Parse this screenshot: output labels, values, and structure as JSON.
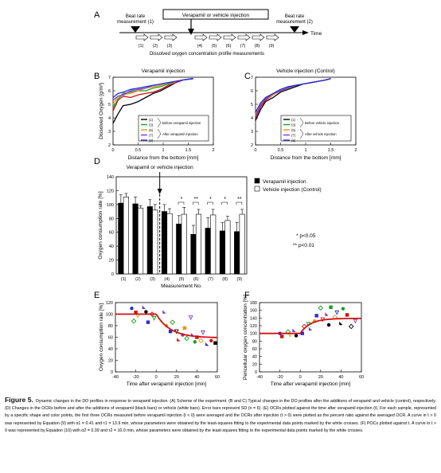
{
  "panel_labels": [
    "A",
    "B",
    "C",
    "D",
    "E",
    "F"
  ],
  "panelA": {
    "beat_rate_1": [
      "Beat rate",
      "measurement (1)"
    ],
    "injection_box": "Verapamil or vehicle injection",
    "beat_rate_2": [
      "Beat rate",
      "measurement (2)"
    ],
    "time_label": "Time",
    "steps": [
      "(1)",
      "(2)",
      "(3)",
      "(4)",
      "(5)",
      "(6)",
      "(7)",
      "(8)",
      "(9)"
    ],
    "caption": "Dissolved oxygen concentration profile measurements"
  },
  "panelB": {
    "title": "Verapamil injection",
    "ylabel": "Dissolved Oxygen [g/m³]",
    "xlabel": "Distance from the bottom [mm]",
    "legend_before": "Before verapamil injection",
    "legend_after": "After verapamil injection"
  },
  "panelC": {
    "title": "Vehicle injection (Control)",
    "legend_before": "Before vehicle injection",
    "legend_after": "After vehicle injection"
  },
  "panelD": {
    "annotation": "Verapamil or vehicle injection",
    "legend_black": "Verapamil injection",
    "legend_white": "Vehicle injection (Control)",
    "sig1": "*  p<0.05",
    "sig2": "** p<0.01",
    "stars": [
      "*",
      "**",
      "*",
      "*",
      "**"
    ]
  },
  "panelE": {
    "ylabel": "Oxygen consumption rate [%]"
  },
  "panelF": {
    "ylabel": "Pericellular oxygen concentration [%]"
  },
  "caption": {
    "figure_label": "Figure 5.",
    "text": "Dynamic changes in the DO profiles in response to verapamil injection. (A) Scheme of the experiment. (B and C) Typical changes in the DO profiles after the additions of verapamil and vehicle (control), respectively. (D) Changes in the OCRs before and after the additions of verapamil (black bars) or vehicle (white bars). Error bars represent SD (n = 6). (E) OCRs plotted against the time after verapamil injection (t). For each sample, represented by a specific shape and color points, the first three OCRs measured before verapamil injection (t < 0) were averaged and the OCRs after injection (t > 0) were plotted as the percent ratio against the averaged OCR. A curve in t > 0 was represented by Equation (9) with α1 = 0.41 and τ1 = 13.9 min, whose parameters were obtained by the least-squares fitting to the experimental data points marked by the white crosses. (F) POCs plotted against t. A curve in t > 0 was represented by Equation (10) with α2 = 0.39 and τ2 = 10.0 min, whose parameters were obtained by the least-squares fitting to the experimental data points marked by the white crosses."
  },
  "chart_data": [
    {
      "panel": "B",
      "type": "line",
      "title": "Verapamil injection",
      "xlabel": "Distance from the bottom [mm]",
      "ylabel": "Dissolved Oxygen [g/m³]",
      "xlim": [
        0,
        2
      ],
      "ylim": [
        2,
        7
      ],
      "xticks": [
        "0",
        "0.5",
        "1",
        "1.5",
        "2"
      ],
      "yticks": [
        "2",
        "3",
        "4",
        "5",
        "6",
        "7"
      ],
      "legend": [
        "(1)",
        "(2)",
        "(3)",
        "(4)",
        "(5)",
        "(6)",
        "(7)",
        "(8)",
        "(9)"
      ],
      "series": [
        {
          "name": "(1)",
          "color": "#000000",
          "x": [
            0,
            0.1,
            0.2,
            0.35,
            0.5,
            0.65,
            0.8,
            0.95,
            1.1,
            1.25,
            1.4,
            1.6
          ],
          "y": [
            3.6,
            4.3,
            4.9,
            5.0,
            5.2,
            5.5,
            5.8,
            6.0,
            6.3,
            6.6,
            6.8,
            6.9
          ]
        },
        {
          "name": "(2)",
          "color": "#d11111",
          "x": [
            0,
            0.1,
            0.2,
            0.35,
            0.5,
            0.65,
            0.8,
            0.95,
            1.1,
            1.25,
            1.4,
            1.6
          ],
          "y": [
            4.5,
            5.3,
            5.6,
            5.5,
            5.7,
            5.8,
            5.9,
            6.1,
            6.4,
            6.6,
            6.8,
            6.9
          ]
        },
        {
          "name": "(3)",
          "color": "#18a018",
          "x": [
            0,
            0.1,
            0.2,
            0.35,
            0.5,
            0.65,
            0.8,
            0.95,
            1.1,
            1.25,
            1.4,
            1.6
          ],
          "y": [
            4.7,
            5.4,
            5.8,
            5.9,
            6.0,
            6.0,
            6.2,
            6.3,
            6.5,
            6.7,
            6.8,
            6.9
          ]
        },
        {
          "name": "(5)",
          "color": "#e8941b",
          "x": [
            0,
            0.1,
            0.2,
            0.35,
            0.5,
            0.65,
            0.8,
            0.95,
            1.1,
            1.25,
            1.4,
            1.6
          ],
          "y": [
            5.0,
            5.6,
            5.7,
            5.8,
            6.0,
            6.2,
            6.3,
            6.4,
            6.6,
            6.7,
            6.8,
            6.9
          ]
        },
        {
          "name": "(7)",
          "color": "#7a3cc8",
          "x": [
            0,
            0.1,
            0.2,
            0.35,
            0.5,
            0.65,
            0.8,
            0.95,
            1.1,
            1.25,
            1.4,
            1.6
          ],
          "y": [
            5.3,
            5.6,
            5.7,
            6.0,
            6.1,
            6.2,
            6.4,
            6.5,
            6.6,
            6.7,
            6.8,
            6.9
          ]
        },
        {
          "name": "(9)",
          "color": "#2b2bd8",
          "x": [
            0,
            0.1,
            0.2,
            0.35,
            0.5,
            0.65,
            0.8,
            0.95,
            1.1,
            1.25,
            1.4,
            1.6
          ],
          "y": [
            5.5,
            5.8,
            5.9,
            6.1,
            6.2,
            6.3,
            6.4,
            6.5,
            6.6,
            6.7,
            6.8,
            6.9
          ]
        }
      ]
    },
    {
      "panel": "C",
      "type": "line",
      "title": "Vehicle injection (Control)",
      "xlabel": "Distance from the bottom [mm]",
      "ylabel": "Dissolved Oxygen [g/m³]",
      "xlim": [
        0,
        2
      ],
      "ylim": [
        2,
        7
      ],
      "xticks": [
        "0",
        "0.5",
        "1",
        "1.5",
        "2"
      ],
      "yticks": [
        "2",
        "3",
        "4",
        "5",
        "6",
        "7"
      ],
      "legend": [
        "(1)",
        "(2)",
        "(3)",
        "(4)",
        "(5)",
        "(6)",
        "(7)",
        "(8)",
        "(9)"
      ],
      "series": [
        {
          "name": "(1)",
          "color": "#000000",
          "x": [
            0,
            0.1,
            0.2,
            0.35,
            0.5,
            0.65,
            0.8,
            0.95,
            1.1,
            1.25,
            1.4,
            1.5
          ],
          "y": [
            3.8,
            4.6,
            5.2,
            5.5,
            5.9,
            6.1,
            6.3,
            6.5,
            6.6,
            6.7,
            6.8,
            6.9
          ]
        },
        {
          "name": "(2)",
          "color": "#d11111",
          "x": [
            0,
            0.1,
            0.2,
            0.35,
            0.5,
            0.65,
            0.8,
            0.95,
            1.1,
            1.25,
            1.4,
            1.5
          ],
          "y": [
            4.0,
            4.8,
            5.3,
            5.7,
            6.0,
            6.2,
            6.4,
            6.5,
            6.6,
            6.7,
            6.8,
            6.9
          ]
        },
        {
          "name": "(3)",
          "color": "#18a018",
          "x": [
            0,
            0.1,
            0.2,
            0.35,
            0.5,
            0.65,
            0.8,
            0.95,
            1.1,
            1.25,
            1.4,
            1.5
          ],
          "y": [
            4.3,
            5.0,
            5.5,
            5.8,
            6.1,
            6.3,
            6.4,
            6.5,
            6.6,
            6.7,
            6.8,
            6.9
          ]
        },
        {
          "name": "(5)",
          "color": "#e8941b",
          "x": [
            0,
            0.1,
            0.2,
            0.35,
            0.5,
            0.65,
            0.8,
            0.95,
            1.1,
            1.25,
            1.4,
            1.5
          ],
          "y": [
            4.2,
            5.0,
            5.4,
            5.7,
            6.0,
            6.2,
            6.4,
            6.5,
            6.6,
            6.7,
            6.8,
            6.9
          ]
        },
        {
          "name": "(7)",
          "color": "#7a3cc8",
          "x": [
            0,
            0.1,
            0.2,
            0.35,
            0.5,
            0.65,
            0.8,
            0.95,
            1.1,
            1.25,
            1.4,
            1.5
          ],
          "y": [
            4.1,
            4.9,
            5.4,
            5.8,
            6.0,
            6.2,
            6.4,
            6.5,
            6.6,
            6.7,
            6.8,
            6.9
          ]
        },
        {
          "name": "(9)",
          "color": "#2b2bd8",
          "x": [
            0,
            0.1,
            0.2,
            0.35,
            0.5,
            0.65,
            0.8,
            0.95,
            1.1,
            1.25,
            1.4,
            1.5
          ],
          "y": [
            4.4,
            5.1,
            5.5,
            5.8,
            6.1,
            6.3,
            6.4,
            6.5,
            6.6,
            6.7,
            6.8,
            6.9
          ]
        }
      ]
    },
    {
      "panel": "D",
      "type": "bar",
      "xlabel": "Measurement No.",
      "ylabel": "Oxygen consumption rate [%]",
      "ylim": [
        0,
        140
      ],
      "yticks": [
        "0",
        "20",
        "40",
        "60",
        "80",
        "100",
        "120",
        "140"
      ],
      "categories": [
        "(1)",
        "(2)",
        "(3)",
        "(4)",
        "(5)",
        "(6)",
        "(7)",
        "(8)",
        "(9)"
      ],
      "series": [
        {
          "name": "Verapamil injection",
          "color": "#000000",
          "values": [
            102,
            101,
            97,
            90,
            72,
            57,
            66,
            62,
            61
          ],
          "errors": [
            12,
            10,
            10,
            10,
            12,
            13,
            15,
            12,
            13
          ]
        },
        {
          "name": "Vehicle injection (Control)",
          "color": "#ffffff",
          "values": [
            111,
            95,
            92,
            87,
            86,
            86,
            85,
            77,
            86
          ],
          "errors": [
            5,
            3,
            8,
            7,
            10,
            7,
            8,
            6,
            7
          ]
        }
      ]
    },
    {
      "panel": "E",
      "type": "scatter",
      "xlabel": "Time after verapamil injection [min]",
      "ylabel": "Oxygen consumption rate [%]",
      "xlim": [
        -40,
        60
      ],
      "ylim": [
        0,
        120
      ],
      "xticks": [
        "-40",
        "-20",
        "0",
        "20",
        "40",
        "60"
      ],
      "yticks": [
        "0",
        "20",
        "40",
        "60",
        "80",
        "100",
        "120"
      ],
      "points": [
        {
          "x": -24,
          "y": 110,
          "color": "#2b2bd8"
        },
        {
          "x": -20,
          "y": 103,
          "color": "#d11111"
        },
        {
          "x": -22,
          "y": 88,
          "color": "#18a018"
        },
        {
          "x": -18,
          "y": 97,
          "color": "#e8941b"
        },
        {
          "x": -12,
          "y": 112,
          "color": "#7a3cc8"
        },
        {
          "x": -10,
          "y": 104,
          "color": "#000000"
        },
        {
          "x": -8,
          "y": 86,
          "color": "#2b2bd8"
        },
        {
          "x": -4,
          "y": 100,
          "color": "#d11111"
        },
        {
          "x": -2,
          "y": 93,
          "color": "#18a018"
        },
        {
          "x": 8,
          "y": 104,
          "color": "#7a3cc8"
        },
        {
          "x": 10,
          "y": 80,
          "color": "#e8941b"
        },
        {
          "x": 14,
          "y": 70,
          "color": "#2b2bd8"
        },
        {
          "x": 16,
          "y": 86,
          "color": "#18a018"
        },
        {
          "x": 20,
          "y": 70,
          "color": "#000000"
        },
        {
          "x": 22,
          "y": 56,
          "color": "#d11111"
        },
        {
          "x": 26,
          "y": 64,
          "color": "#7a3cc8"
        },
        {
          "x": 28,
          "y": 76,
          "color": "#e8941b"
        },
        {
          "x": 30,
          "y": 58,
          "color": "#18a018"
        },
        {
          "x": 34,
          "y": 94,
          "color": "#7a3cc8"
        },
        {
          "x": 36,
          "y": 64,
          "color": "#2b2bd8"
        },
        {
          "x": 38,
          "y": 52,
          "color": "#18a018"
        },
        {
          "x": 40,
          "y": 60,
          "color": "#d11111"
        },
        {
          "x": 44,
          "y": 54,
          "color": "#e8941b"
        },
        {
          "x": 46,
          "y": 68,
          "color": "#7a3cc8"
        },
        {
          "x": 50,
          "y": 48,
          "color": "#2b2bd8"
        },
        {
          "x": 54,
          "y": 54,
          "color": "#d11111"
        },
        {
          "x": 58,
          "y": 50,
          "color": "#000000"
        }
      ],
      "fit_curve": {
        "color": "#d11111",
        "baseline_t_lt_0": 100,
        "alpha": 0.41,
        "tau_min": 13.9
      }
    },
    {
      "panel": "F",
      "type": "scatter",
      "xlabel": "Time after verapamil injection [min]",
      "ylabel": "Pericellular oxygen concentration [%]",
      "xlim": [
        -40,
        60
      ],
      "ylim": [
        0,
        180
      ],
      "xticks": [
        "-40",
        "-20",
        "0",
        "20",
        "40",
        "60"
      ],
      "yticks": [
        "0",
        "20",
        "40",
        "60",
        "80",
        "100",
        "120",
        "140",
        "160",
        "180"
      ],
      "points": [
        {
          "x": -20,
          "y": 100,
          "color": "#2b2bd8"
        },
        {
          "x": -18,
          "y": 92,
          "color": "#d11111"
        },
        {
          "x": -12,
          "y": 104,
          "color": "#18a018"
        },
        {
          "x": -10,
          "y": 96,
          "color": "#e8941b"
        },
        {
          "x": -6,
          "y": 108,
          "color": "#7a3cc8"
        },
        {
          "x": -4,
          "y": 94,
          "color": "#000000"
        },
        {
          "x": 2,
          "y": 100,
          "color": "#2b2bd8"
        },
        {
          "x": 4,
          "y": 118,
          "color": "#d11111"
        },
        {
          "x": 8,
          "y": 124,
          "color": "#18a018"
        },
        {
          "x": 10,
          "y": 112,
          "color": "#7a3cc8"
        },
        {
          "x": 14,
          "y": 132,
          "color": "#e8941b"
        },
        {
          "x": 16,
          "y": 146,
          "color": "#2b2bd8"
        },
        {
          "x": 20,
          "y": 166,
          "color": "#18a018"
        },
        {
          "x": 22,
          "y": 136,
          "color": "#d11111"
        },
        {
          "x": 26,
          "y": 150,
          "color": "#7a3cc8"
        },
        {
          "x": 28,
          "y": 122,
          "color": "#000000"
        },
        {
          "x": 30,
          "y": 168,
          "color": "#18a018"
        },
        {
          "x": 34,
          "y": 142,
          "color": "#e8941b"
        },
        {
          "x": 36,
          "y": 154,
          "color": "#2b2bd8"
        },
        {
          "x": 40,
          "y": 126,
          "color": "#000000"
        },
        {
          "x": 42,
          "y": 164,
          "color": "#18a018"
        },
        {
          "x": 46,
          "y": 148,
          "color": "#d11111"
        },
        {
          "x": 50,
          "y": 118,
          "color": "#000000"
        },
        {
          "x": 54,
          "y": 132,
          "color": "#7a3cc8"
        }
      ],
      "fit_curve": {
        "color": "#d11111",
        "baseline_t_lt_0": 100,
        "alpha": 0.39,
        "tau_min": 10.0
      }
    }
  ]
}
